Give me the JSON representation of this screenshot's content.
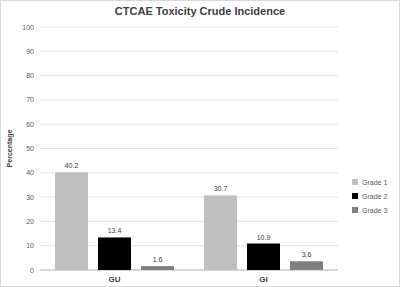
{
  "chart_data": {
    "type": "bar",
    "title": "CTCAE Toxicity Crude Incidence",
    "y_label": "Percentage",
    "categories": [
      "GU",
      "GI"
    ],
    "series": [
      {
        "name": "Grade 1",
        "color": "#bfbfbf",
        "values": [
          40.2,
          30.7
        ]
      },
      {
        "name": "Grade 2",
        "color": "#000000",
        "values": [
          13.4,
          10.9
        ]
      },
      {
        "name": "Grade 3",
        "color": "#7f7f7f",
        "values": [
          1.6,
          3.6
        ]
      }
    ],
    "ylim": [
      0,
      100
    ],
    "yticks": [
      0,
      10,
      20,
      30,
      40,
      50,
      60,
      70,
      80,
      90,
      100
    ],
    "grid": true,
    "legend": "right",
    "data_labels": true
  }
}
